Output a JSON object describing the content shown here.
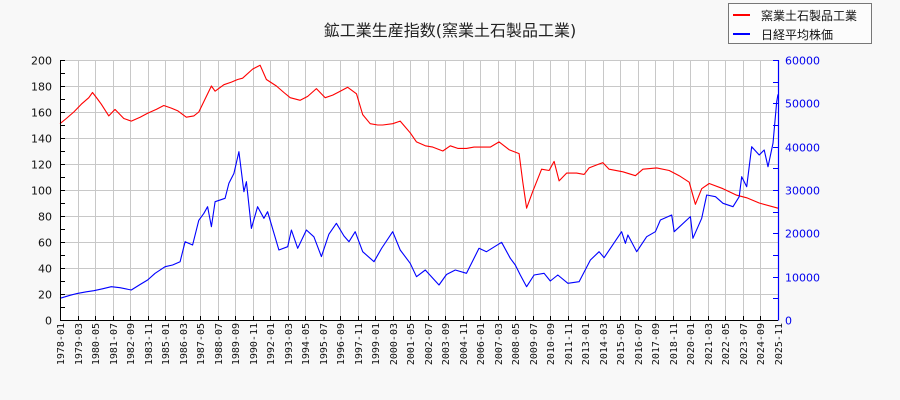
{
  "chart_data": {
    "type": "line",
    "title": "鉱工業生産指数(窯業土石製品工業)",
    "xlabel": "",
    "ylabel": "",
    "ylabel_right": "",
    "ylim": [
      0,
      200
    ],
    "y2lim": [
      0,
      60000
    ],
    "grid": true,
    "legend_position": "top-right",
    "yticks_left": [
      0,
      20,
      40,
      60,
      80,
      100,
      120,
      140,
      160,
      180,
      200
    ],
    "yticks_right": [
      0,
      10000,
      20000,
      30000,
      40000,
      50000,
      60000
    ],
    "x_range": [
      "1978-01",
      "2025-11"
    ],
    "x_ticks": [
      "1978-01",
      "1979-03",
      "1980-05",
      "1981-07",
      "1982-09",
      "1983-11",
      "1985-01",
      "1986-03",
      "1987-05",
      "1988-07",
      "1989-09",
      "1990-11",
      "1992-01",
      "1993-03",
      "1994-05",
      "1995-07",
      "1996-09",
      "1997-11",
      "1999-01",
      "2000-03",
      "2001-05",
      "2002-07",
      "2003-09",
      "2004-11",
      "2006-01",
      "2007-03",
      "2008-05",
      "2009-07",
      "2010-09",
      "2011-11",
      "2013-01",
      "2014-03",
      "2015-05",
      "2016-07",
      "2017-09",
      "2018-11",
      "2020-01",
      "2021-03",
      "2022-05",
      "2023-07",
      "2024-09",
      "2025-11"
    ],
    "series": [
      {
        "name": "窯業土石製品工業",
        "axis": "left",
        "color": "#ff0000",
        "points": [
          [
            "1978-01",
            151
          ],
          [
            "1978-06",
            155
          ],
          [
            "1978-12",
            160
          ],
          [
            "1979-06",
            166
          ],
          [
            "1979-12",
            171
          ],
          [
            "1980-03",
            175
          ],
          [
            "1980-07",
            170
          ],
          [
            "1980-10",
            166
          ],
          [
            "1981-04",
            157
          ],
          [
            "1981-09",
            162
          ],
          [
            "1982-04",
            155
          ],
          [
            "1982-10",
            153
          ],
          [
            "1983-05",
            156
          ],
          [
            "1983-11",
            159
          ],
          [
            "1984-06",
            162
          ],
          [
            "1984-12",
            165
          ],
          [
            "1985-06",
            163
          ],
          [
            "1985-11",
            161
          ],
          [
            "1986-06",
            156
          ],
          [
            "1986-12",
            157
          ],
          [
            "1987-04",
            160
          ],
          [
            "1987-09",
            170
          ],
          [
            "1988-02",
            180
          ],
          [
            "1988-05",
            176
          ],
          [
            "1988-12",
            181
          ],
          [
            "1989-06",
            183
          ],
          [
            "1989-11",
            185
          ],
          [
            "1990-03",
            186
          ],
          [
            "1990-11",
            193
          ],
          [
            "1991-05",
            196
          ],
          [
            "1991-10",
            185
          ],
          [
            "1992-06",
            180
          ],
          [
            "1992-12",
            175
          ],
          [
            "1993-05",
            171
          ],
          [
            "1994-01",
            169
          ],
          [
            "1994-07",
            172
          ],
          [
            "1995-02",
            178
          ],
          [
            "1995-09",
            171
          ],
          [
            "1996-03",
            173
          ],
          [
            "1996-09",
            176
          ],
          [
            "1997-03",
            179
          ],
          [
            "1997-10",
            174
          ],
          [
            "1998-03",
            158
          ],
          [
            "1998-09",
            151
          ],
          [
            "1999-03",
            150
          ],
          [
            "1999-07",
            150
          ],
          [
            "2000-03",
            151
          ],
          [
            "2000-09",
            153
          ],
          [
            "2001-05",
            144
          ],
          [
            "2001-10",
            137
          ],
          [
            "2002-05",
            134
          ],
          [
            "2002-11",
            133
          ],
          [
            "2003-07",
            130
          ],
          [
            "2004-01",
            134
          ],
          [
            "2004-07",
            132
          ],
          [
            "2005-02",
            132
          ],
          [
            "2005-08",
            133
          ],
          [
            "2006-03",
            133
          ],
          [
            "2006-09",
            133
          ],
          [
            "2007-04",
            137
          ],
          [
            "2007-12",
            131
          ],
          [
            "2008-08",
            128
          ],
          [
            "2008-11",
            106
          ],
          [
            "2009-02",
            86
          ],
          [
            "2009-07",
            99
          ],
          [
            "2010-02",
            116
          ],
          [
            "2010-08",
            115
          ],
          [
            "2010-12",
            122
          ],
          [
            "2011-04",
            107
          ],
          [
            "2011-10",
            113
          ],
          [
            "2012-06",
            113
          ],
          [
            "2012-12",
            112
          ],
          [
            "2013-04",
            117
          ],
          [
            "2013-12",
            120
          ],
          [
            "2014-03",
            121
          ],
          [
            "2014-08",
            116
          ],
          [
            "2015-07",
            114
          ],
          [
            "2016-05",
            111
          ],
          [
            "2016-11",
            116
          ],
          [
            "2017-10",
            117
          ],
          [
            "2018-08",
            115
          ],
          [
            "2019-04",
            111
          ],
          [
            "2019-12",
            106
          ],
          [
            "2020-05",
            89
          ],
          [
            "2020-10",
            101
          ],
          [
            "2021-04",
            105
          ],
          [
            "2022-03",
            101
          ],
          [
            "2023-02",
            96
          ],
          [
            "2023-10",
            94
          ],
          [
            "2024-08",
            90
          ],
          [
            "2025-11",
            86
          ]
        ]
      },
      {
        "name": "日経平均株価",
        "axis": "right",
        "color": "#0000ff",
        "points": [
          [
            "1978-01",
            5000
          ],
          [
            "1978-09",
            5700
          ],
          [
            "1979-03",
            6150
          ],
          [
            "1979-10",
            6500
          ],
          [
            "1980-04",
            6770
          ],
          [
            "1980-11",
            7200
          ],
          [
            "1981-06",
            7690
          ],
          [
            "1982-01",
            7460
          ],
          [
            "1982-10",
            6920
          ],
          [
            "1983-05",
            8200
          ],
          [
            "1983-11",
            9230
          ],
          [
            "1984-05",
            10770
          ],
          [
            "1985-01",
            12310
          ],
          [
            "1985-07",
            12700
          ],
          [
            "1986-01",
            13460
          ],
          [
            "1986-05",
            18080
          ],
          [
            "1986-11",
            17310
          ],
          [
            "1987-04",
            23000
          ],
          [
            "1987-08",
            24620
          ],
          [
            "1987-11",
            26150
          ],
          [
            "1988-02",
            21540
          ],
          [
            "1988-05",
            27310
          ],
          [
            "1989-01",
            28080
          ],
          [
            "1989-04",
            31540
          ],
          [
            "1989-08",
            33800
          ],
          [
            "1989-12",
            38840
          ],
          [
            "1990-04",
            29610
          ],
          [
            "1990-06",
            31920
          ],
          [
            "1990-10",
            21150
          ],
          [
            "1991-03",
            26150
          ],
          [
            "1991-08",
            23460
          ],
          [
            "1991-11",
            25000
          ],
          [
            "1992-08",
            16150
          ],
          [
            "1993-03",
            16920
          ],
          [
            "1993-06",
            20770
          ],
          [
            "1993-11",
            16540
          ],
          [
            "1994-06",
            20770
          ],
          [
            "1994-12",
            19200
          ],
          [
            "1995-06",
            14620
          ],
          [
            "1995-12",
            19800
          ],
          [
            "1996-06",
            22310
          ],
          [
            "1996-12",
            19400
          ],
          [
            "1997-04",
            18080
          ],
          [
            "1997-09",
            20380
          ],
          [
            "1998-03",
            15770
          ],
          [
            "1998-12",
            13460
          ],
          [
            "1999-06",
            16500
          ],
          [
            "2000-03",
            20380
          ],
          [
            "2000-09",
            16150
          ],
          [
            "2001-05",
            13080
          ],
          [
            "2001-10",
            10000
          ],
          [
            "2002-05",
            11540
          ],
          [
            "2003-04",
            8080
          ],
          [
            "2003-10",
            10500
          ],
          [
            "2004-05",
            11540
          ],
          [
            "2005-02",
            10770
          ],
          [
            "2005-12",
            16540
          ],
          [
            "2006-06",
            15770
          ],
          [
            "2007-06",
            17920
          ],
          [
            "2008-01",
            14230
          ],
          [
            "2008-05",
            12690
          ],
          [
            "2008-09",
            10380
          ],
          [
            "2009-02",
            7690
          ],
          [
            "2009-08",
            10380
          ],
          [
            "2010-04",
            10770
          ],
          [
            "2010-09",
            9000
          ],
          [
            "2011-03",
            10380
          ],
          [
            "2011-11",
            8460
          ],
          [
            "2012-08",
            8840
          ],
          [
            "2013-05",
            13850
          ],
          [
            "2013-12",
            15770
          ],
          [
            "2014-04",
            14380
          ],
          [
            "2015-06",
            20380
          ],
          [
            "2015-09",
            17690
          ],
          [
            "2015-11",
            19620
          ],
          [
            "2016-06",
            15770
          ],
          [
            "2017-02",
            19230
          ],
          [
            "2017-09",
            20380
          ],
          [
            "2018-01",
            23080
          ],
          [
            "2018-10",
            24230
          ],
          [
            "2018-12",
            20380
          ],
          [
            "2020-01",
            23850
          ],
          [
            "2020-03",
            18850
          ],
          [
            "2020-10",
            23460
          ],
          [
            "2021-02",
            28850
          ],
          [
            "2021-09",
            28460
          ],
          [
            "2022-03",
            26920
          ],
          [
            "2022-11",
            26150
          ],
          [
            "2023-04",
            28460
          ],
          [
            "2023-06",
            33080
          ],
          [
            "2023-10",
            30770
          ],
          [
            "2024-02",
            40000
          ],
          [
            "2024-08",
            38080
          ],
          [
            "2024-12",
            39230
          ],
          [
            "2025-03",
            35380
          ],
          [
            "2025-07",
            40770
          ],
          [
            "2025-10",
            50380
          ],
          [
            "2025-11",
            52080
          ]
        ]
      }
    ]
  },
  "legend": {
    "items": [
      {
        "label": "窯業土石製品工業",
        "color": "#ff0000"
      },
      {
        "label": "日経平均株価",
        "color": "#0000ff"
      }
    ]
  }
}
